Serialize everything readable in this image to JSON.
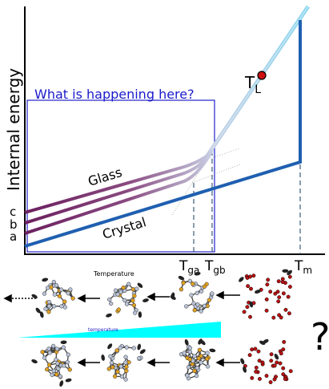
{
  "axis_label": "Internal energy",
  "box_title": "What is happening here?",
  "curves": {
    "glass": "Glass",
    "crystal": "Crystal"
  },
  "levels": [
    "c",
    "b",
    "a"
  ],
  "liquidus": {
    "main": "T",
    "sub": "L"
  },
  "markers": [
    {
      "main": "T",
      "sub": "ga"
    },
    {
      "main": "T",
      "sub": "gb"
    },
    {
      "main": "T",
      "sub": "m"
    }
  ],
  "bottom": {
    "top_label": "Temperature",
    "ramp_label": "temperature",
    "question": "?"
  }
}
